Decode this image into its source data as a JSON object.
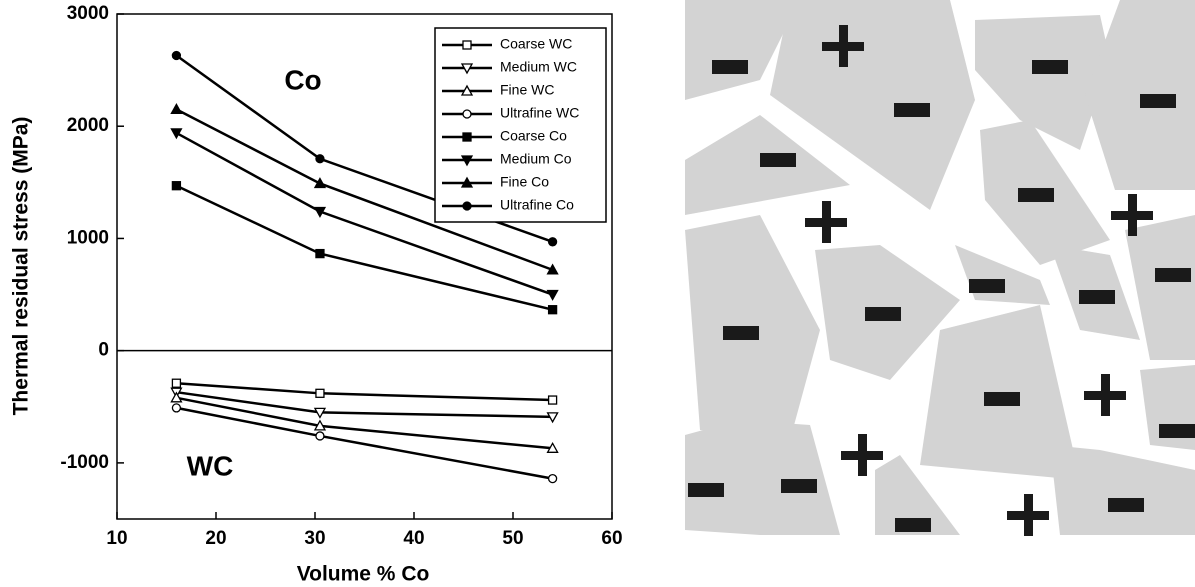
{
  "chart_data": {
    "type": "line",
    "xlabel": "Volume % Co",
    "ylabel": "Thermal residual stress (MPa)",
    "annotations": [
      "Co",
      "WC"
    ],
    "x": [
      16,
      30.5,
      54
    ],
    "xlim": [
      10,
      60
    ],
    "xticks": [
      10,
      20,
      30,
      40,
      50,
      60
    ],
    "ylim": [
      -1500,
      3000
    ],
    "yticks": [
      -1000,
      0,
      1000,
      2000,
      3000
    ],
    "legend": "upper right",
    "series": [
      {
        "name": "Coarse WC",
        "color": "#000000",
        "marker": "square",
        "filled": false,
        "values": [
          -290,
          -380,
          -440
        ]
      },
      {
        "name": "Medium WC",
        "color": "#000000",
        "marker": "triangle-down",
        "filled": false,
        "values": [
          -370,
          -550,
          -590
        ]
      },
      {
        "name": "Fine WC",
        "color": "#000000",
        "marker": "triangle-up",
        "filled": false,
        "values": [
          -420,
          -670,
          -870
        ]
      },
      {
        "name": "Ultrafine WC",
        "color": "#000000",
        "marker": "circle",
        "filled": false,
        "values": [
          -510,
          -760,
          -1140
        ]
      },
      {
        "name": "Coarse Co",
        "color": "#000000",
        "marker": "square",
        "filled": true,
        "values": [
          1470,
          865,
          365
        ]
      },
      {
        "name": "Medium Co",
        "color": "#000000",
        "marker": "triangle-down",
        "filled": true,
        "values": [
          1940,
          1240,
          500
        ]
      },
      {
        "name": "Fine Co",
        "color": "#000000",
        "marker": "triangle-up",
        "filled": true,
        "values": [
          2150,
          1490,
          720
        ]
      },
      {
        "name": "Ultrafine Co",
        "color": "#000000",
        "marker": "circle",
        "filled": true,
        "values": [
          2630,
          1710,
          970
        ]
      }
    ]
  }
}
